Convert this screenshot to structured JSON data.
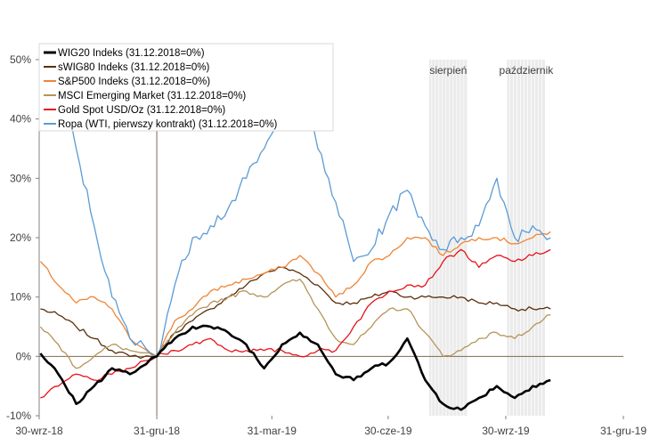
{
  "chart_data": {
    "type": "line",
    "title": "",
    "xlabel": "",
    "ylabel": "",
    "x_ticks": [
      "30-wrz-18",
      "31-gru-18",
      "31-mar-19",
      "30-cze-19",
      "30-wrz-19",
      "31-gru-19"
    ],
    "y_ticks": [
      "-10%",
      "0%",
      "10%",
      "20%",
      "30%",
      "40%",
      "50%"
    ],
    "ylim": [
      -10,
      50
    ],
    "xlim": [
      "2018-09-30",
      "2019-12-31"
    ],
    "reference_date": "2018-12-31",
    "grid": false,
    "legend_position": "top-left",
    "shaded_periods": [
      {
        "label": "sierpień",
        "start": "2019-08-01",
        "end": "2019-08-31"
      },
      {
        "label": "październik",
        "start": "2019-10-01",
        "end": "2019-10-31"
      }
    ],
    "series": [
      {
        "name": "WIG20 Indeks (31.12.2018=0%)",
        "color": "#000000",
        "width": 2.6,
        "x": [
          "2018-10-01",
          "2018-10-15",
          "2018-10-29",
          "2018-11-12",
          "2018-11-26",
          "2018-12-10",
          "2018-12-31",
          "2019-01-14",
          "2019-01-28",
          "2019-02-11",
          "2019-02-25",
          "2019-03-11",
          "2019-03-25",
          "2019-04-08",
          "2019-04-22",
          "2019-05-06",
          "2019-05-20",
          "2019-06-03",
          "2019-06-17",
          "2019-07-01",
          "2019-07-15",
          "2019-07-29",
          "2019-08-12",
          "2019-08-26",
          "2019-09-09",
          "2019-09-23",
          "2019-10-07",
          "2019-10-21",
          "2019-11-04"
        ],
        "values": [
          0.5,
          -3,
          -8,
          -5,
          -2,
          -3,
          0,
          3,
          5,
          5,
          4,
          2,
          -2,
          2,
          4,
          2,
          -3,
          -4,
          -2,
          -1,
          3,
          -4,
          -8,
          -9,
          -7,
          -5,
          -7,
          -5,
          -4
        ]
      },
      {
        "name": "sWIG80 Indeks (31.12.2018=0%)",
        "color": "#5a2f0b",
        "width": 1.3,
        "x": [
          "2018-10-01",
          "2018-10-15",
          "2018-10-29",
          "2018-11-12",
          "2018-11-26",
          "2018-12-10",
          "2018-12-31",
          "2019-01-14",
          "2019-01-28",
          "2019-02-11",
          "2019-02-25",
          "2019-03-11",
          "2019-03-25",
          "2019-04-08",
          "2019-04-22",
          "2019-05-06",
          "2019-05-20",
          "2019-06-03",
          "2019-06-17",
          "2019-07-01",
          "2019-07-15",
          "2019-07-29",
          "2019-08-12",
          "2019-08-26",
          "2019-09-09",
          "2019-09-23",
          "2019-10-07",
          "2019-10-21",
          "2019-11-04"
        ],
        "values": [
          8,
          7,
          5,
          3,
          1,
          0,
          0,
          4,
          6,
          8,
          10,
          12,
          14,
          15,
          14,
          12,
          9,
          9,
          10,
          11,
          10,
          10,
          10,
          10,
          9,
          9,
          8,
          8,
          8
        ]
      },
      {
        "name": "S&P500 Indeks (31.12.2018=0%)",
        "color": "#ef8535",
        "width": 1.3,
        "x": [
          "2018-10-01",
          "2018-10-15",
          "2018-10-29",
          "2018-11-12",
          "2018-11-26",
          "2018-12-10",
          "2018-12-31",
          "2019-01-14",
          "2019-01-28",
          "2019-02-11",
          "2019-02-25",
          "2019-03-11",
          "2019-03-25",
          "2019-04-08",
          "2019-04-22",
          "2019-05-06",
          "2019-05-20",
          "2019-06-03",
          "2019-06-17",
          "2019-07-01",
          "2019-07-15",
          "2019-07-29",
          "2019-08-12",
          "2019-08-26",
          "2019-09-09",
          "2019-09-23",
          "2019-10-07",
          "2019-10-21",
          "2019-11-04"
        ],
        "values": [
          16,
          12,
          9,
          10,
          8,
          3,
          0,
          6,
          8,
          11,
          12,
          13,
          14,
          15,
          17,
          14,
          10,
          12,
          16,
          17,
          20,
          20,
          17,
          19,
          20,
          20,
          19,
          20,
          21
        ]
      },
      {
        "name": "MSCI Emerging Market  (31.12.2018=0%)",
        "color": "#b59459",
        "width": 1.3,
        "x": [
          "2018-10-01",
          "2018-10-15",
          "2018-10-29",
          "2018-11-12",
          "2018-11-26",
          "2018-12-10",
          "2018-12-31",
          "2019-01-14",
          "2019-01-28",
          "2019-02-11",
          "2019-02-25",
          "2019-03-11",
          "2019-03-25",
          "2019-04-08",
          "2019-04-22",
          "2019-05-06",
          "2019-05-20",
          "2019-06-03",
          "2019-06-17",
          "2019-07-01",
          "2019-07-15",
          "2019-07-29",
          "2019-08-12",
          "2019-08-26",
          "2019-09-09",
          "2019-09-23",
          "2019-10-07",
          "2019-10-21",
          "2019-11-04"
        ],
        "values": [
          5,
          2,
          -2,
          0,
          2,
          1,
          0,
          4,
          7,
          9,
          10,
          11,
          10,
          12,
          13,
          8,
          3,
          2,
          5,
          8,
          8,
          4,
          0,
          1,
          3,
          4,
          3,
          5,
          7
        ]
      },
      {
        "name": "Gold Spot USD/Oz  (31.12.2018=0%)",
        "color": "#e6121a",
        "width": 1.3,
        "x": [
          "2018-10-01",
          "2018-10-15",
          "2018-10-29",
          "2018-11-12",
          "2018-11-26",
          "2018-12-10",
          "2018-12-31",
          "2019-01-14",
          "2019-01-28",
          "2019-02-11",
          "2019-02-25",
          "2019-03-11",
          "2019-03-25",
          "2019-04-08",
          "2019-04-22",
          "2019-05-06",
          "2019-05-20",
          "2019-06-03",
          "2019-06-17",
          "2019-07-01",
          "2019-07-15",
          "2019-07-29",
          "2019-08-12",
          "2019-08-26",
          "2019-09-09",
          "2019-09-23",
          "2019-10-07",
          "2019-10-21",
          "2019-11-04"
        ],
        "values": [
          -7,
          -5,
          -3,
          -4,
          -3,
          -2,
          0,
          1,
          2,
          3,
          1,
          1,
          1,
          1,
          0,
          1,
          1,
          5,
          9,
          11,
          12,
          12,
          16,
          18,
          15,
          17,
          16,
          17,
          18
        ]
      },
      {
        "name": "Ropa (WTI, pierwszy kontrakt)  (31.12.2018=0%)",
        "color": "#5b9bd5",
        "width": 1.3,
        "x": [
          "2018-10-01",
          "2018-10-15",
          "2018-10-29",
          "2018-11-12",
          "2018-11-26",
          "2018-12-10",
          "2018-12-31",
          "2019-01-14",
          "2019-01-28",
          "2019-02-11",
          "2019-02-25",
          "2019-03-11",
          "2019-03-25",
          "2019-04-08",
          "2019-04-22",
          "2019-05-06",
          "2019-05-20",
          "2019-06-03",
          "2019-06-17",
          "2019-07-01",
          "2019-07-15",
          "2019-07-29",
          "2019-08-12",
          "2019-08-26",
          "2019-09-09",
          "2019-09-23",
          "2019-10-07",
          "2019-10-21",
          "2019-11-04"
        ],
        "values": [
          63,
          48,
          35,
          22,
          10,
          3,
          0,
          12,
          20,
          22,
          25,
          30,
          35,
          40,
          45,
          35,
          26,
          16,
          18,
          24,
          28,
          22,
          18,
          20,
          22,
          30,
          20,
          22,
          20
        ]
      }
    ]
  }
}
